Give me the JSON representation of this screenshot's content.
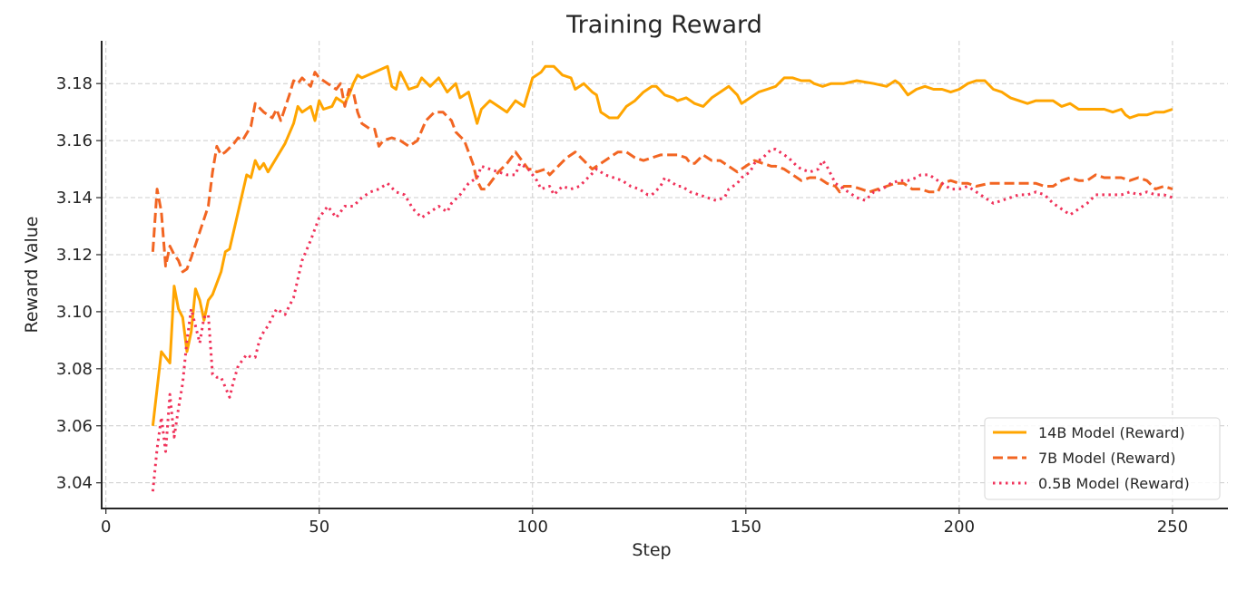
{
  "chart_data": {
    "type": "line",
    "title": "Training Reward",
    "xlabel": "Step",
    "ylabel": "Reward Value",
    "xlim": [
      -1,
      263
    ],
    "ylim": [
      3.031,
      3.195
    ],
    "xticks": [
      0,
      50,
      100,
      150,
      200,
      250
    ],
    "yticks": [
      3.04,
      3.06,
      3.08,
      3.1,
      3.12,
      3.14,
      3.16,
      3.18
    ],
    "ytick_labels": [
      "3.04",
      "3.06",
      "3.08",
      "3.10",
      "3.12",
      "3.14",
      "3.16",
      "3.18"
    ],
    "grid": true,
    "legend_position": "lower right",
    "series": [
      {
        "name": "14B Model (Reward)",
        "color": "#FFA500",
        "style": "solid",
        "x": [
          11,
          13,
          15,
          16,
          17,
          18,
          19,
          20,
          21,
          22,
          23,
          24,
          25,
          27,
          28,
          29,
          31,
          33,
          34,
          35,
          36,
          37,
          38,
          40,
          42,
          44,
          45,
          46,
          48,
          49,
          50,
          51,
          53,
          54,
          56,
          57,
          58,
          59,
          60,
          63,
          66,
          67,
          68,
          69,
          71,
          73,
          74,
          76,
          78,
          80,
          82,
          83,
          85,
          87,
          88,
          90,
          92,
          94,
          96,
          98,
          100,
          102,
          103,
          105,
          107,
          109,
          110,
          112,
          114,
          115,
          116,
          117,
          118,
          120,
          122,
          124,
          126,
          128,
          129,
          131,
          133,
          134,
          136,
          138,
          140,
          142,
          144,
          146,
          148,
          149,
          151,
          153,
          155,
          157,
          159,
          161,
          163,
          165,
          166,
          168,
          170,
          173,
          176,
          180,
          183,
          185,
          186,
          188,
          190,
          192,
          194,
          196,
          198,
          200,
          202,
          204,
          206,
          208,
          210,
          212,
          214,
          216,
          218,
          222,
          224,
          226,
          228,
          231,
          234,
          236,
          238,
          239,
          240,
          242,
          244,
          246,
          248,
          250
        ],
        "values": [
          3.06,
          3.086,
          3.082,
          3.109,
          3.101,
          3.098,
          3.086,
          3.093,
          3.108,
          3.104,
          3.097,
          3.104,
          3.106,
          3.114,
          3.121,
          3.122,
          3.135,
          3.148,
          3.147,
          3.153,
          3.15,
          3.152,
          3.149,
          3.154,
          3.159,
          3.166,
          3.172,
          3.17,
          3.172,
          3.167,
          3.174,
          3.171,
          3.172,
          3.175,
          3.173,
          3.176,
          3.18,
          3.183,
          3.182,
          3.184,
          3.186,
          3.179,
          3.178,
          3.184,
          3.178,
          3.179,
          3.182,
          3.179,
          3.182,
          3.177,
          3.18,
          3.175,
          3.177,
          3.166,
          3.171,
          3.174,
          3.172,
          3.17,
          3.174,
          3.172,
          3.182,
          3.184,
          3.186,
          3.186,
          3.183,
          3.182,
          3.178,
          3.18,
          3.177,
          3.176,
          3.17,
          3.169,
          3.168,
          3.168,
          3.172,
          3.174,
          3.177,
          3.179,
          3.179,
          3.176,
          3.175,
          3.174,
          3.175,
          3.173,
          3.172,
          3.175,
          3.177,
          3.179,
          3.176,
          3.173,
          3.175,
          3.177,
          3.178,
          3.179,
          3.182,
          3.182,
          3.181,
          3.181,
          3.18,
          3.179,
          3.18,
          3.18,
          3.181,
          3.18,
          3.179,
          3.181,
          3.18,
          3.176,
          3.178,
          3.179,
          3.178,
          3.178,
          3.177,
          3.178,
          3.18,
          3.181,
          3.181,
          3.178,
          3.177,
          3.175,
          3.174,
          3.173,
          3.174,
          3.174,
          3.172,
          3.173,
          3.171,
          3.171,
          3.171,
          3.17,
          3.171,
          3.169,
          3.168,
          3.169,
          3.169,
          3.17,
          3.17,
          3.171
        ]
      },
      {
        "name": "7B Model (Reward)",
        "color": "#F26522",
        "style": "dashed",
        "x": [
          11,
          12,
          13,
          14,
          15,
          16,
          17,
          18,
          19,
          20,
          22,
          24,
          25,
          26,
          27,
          28,
          30,
          31,
          32,
          34,
          35,
          37,
          39,
          40,
          41,
          43,
          44,
          45,
          46,
          48,
          49,
          50,
          52,
          54,
          55,
          56,
          57,
          58,
          59,
          60,
          62,
          63,
          64,
          65,
          67,
          69,
          71,
          73,
          75,
          77,
          79,
          81,
          82,
          84,
          85,
          86,
          87,
          88,
          89,
          90,
          92,
          94,
          96,
          97,
          99,
          100,
          101,
          103,
          104,
          106,
          108,
          110,
          112,
          114,
          116,
          118,
          120,
          122,
          124,
          126,
          128,
          130,
          132,
          134,
          136,
          137,
          138,
          140,
          142,
          144,
          146,
          148,
          150,
          152,
          154,
          156,
          157,
          159,
          161,
          163,
          165,
          167,
          169,
          171,
          172,
          173,
          175,
          177,
          179,
          181,
          183,
          185,
          187,
          189,
          191,
          193,
          195,
          196,
          198,
          200,
          202,
          204,
          207,
          210,
          212,
          214,
          216,
          218,
          220,
          222,
          224,
          226,
          228,
          230,
          232,
          234,
          236,
          238,
          240,
          242,
          244,
          246,
          248,
          250
        ],
        "values": [
          3.121,
          3.143,
          3.135,
          3.116,
          3.123,
          3.12,
          3.118,
          3.114,
          3.115,
          3.119,
          3.128,
          3.137,
          3.149,
          3.158,
          3.155,
          3.156,
          3.159,
          3.161,
          3.16,
          3.165,
          3.173,
          3.17,
          3.168,
          3.171,
          3.167,
          3.176,
          3.181,
          3.18,
          3.182,
          3.179,
          3.184,
          3.182,
          3.18,
          3.178,
          3.18,
          3.172,
          3.178,
          3.177,
          3.17,
          3.166,
          3.164,
          3.164,
          3.158,
          3.16,
          3.161,
          3.16,
          3.158,
          3.16,
          3.167,
          3.17,
          3.17,
          3.167,
          3.163,
          3.16,
          3.156,
          3.152,
          3.146,
          3.143,
          3.143,
          3.145,
          3.149,
          3.152,
          3.156,
          3.154,
          3.15,
          3.15,
          3.149,
          3.15,
          3.148,
          3.151,
          3.154,
          3.156,
          3.153,
          3.15,
          3.152,
          3.154,
          3.156,
          3.156,
          3.154,
          3.153,
          3.154,
          3.155,
          3.155,
          3.155,
          3.154,
          3.152,
          3.152,
          3.155,
          3.153,
          3.153,
          3.151,
          3.149,
          3.151,
          3.153,
          3.152,
          3.151,
          3.151,
          3.15,
          3.148,
          3.146,
          3.147,
          3.147,
          3.145,
          3.144,
          3.142,
          3.144,
          3.144,
          3.143,
          3.142,
          3.143,
          3.144,
          3.145,
          3.145,
          3.143,
          3.143,
          3.142,
          3.142,
          3.145,
          3.146,
          3.145,
          3.145,
          3.144,
          3.145,
          3.145,
          3.145,
          3.145,
          3.145,
          3.145,
          3.144,
          3.144,
          3.146,
          3.147,
          3.146,
          3.146,
          3.148,
          3.147,
          3.147,
          3.147,
          3.146,
          3.147,
          3.146,
          3.143,
          3.144,
          3.143
        ]
      },
      {
        "name": "0.5B Model (Reward)",
        "color": "#F0325A",
        "style": "dotted",
        "x": [
          11,
          12,
          13,
          14,
          15,
          16,
          17,
          18,
          19,
          20,
          21,
          22,
          23,
          24,
          25,
          26,
          27,
          29,
          30,
          31,
          33,
          34,
          35,
          36,
          37,
          38,
          39,
          40,
          42,
          44,
          46,
          48,
          50,
          52,
          54,
          56,
          58,
          60,
          62,
          64,
          66,
          68,
          70,
          72,
          74,
          76,
          78,
          80,
          81,
          83,
          85,
          87,
          88,
          90,
          92,
          94,
          96,
          97,
          99,
          101,
          102,
          104,
          105,
          107,
          109,
          111,
          113,
          115,
          117,
          119,
          121,
          123,
          125,
          127,
          128,
          130,
          131,
          133,
          134,
          135,
          137,
          139,
          141,
          143,
          145,
          146,
          148,
          149,
          151,
          152,
          154,
          156,
          157,
          159,
          160,
          162,
          163,
          165,
          167,
          168,
          169,
          170,
          171,
          173,
          175,
          176,
          178,
          180,
          182,
          184,
          186,
          188,
          190,
          191,
          193,
          195,
          196,
          198,
          200,
          202,
          204,
          206,
          208,
          210,
          212,
          214,
          216,
          218,
          220,
          222,
          224,
          226,
          228,
          230,
          232,
          234,
          236,
          238,
          240,
          242,
          244,
          246,
          248,
          250
        ],
        "values": [
          3.037,
          3.052,
          3.063,
          3.051,
          3.071,
          3.056,
          3.066,
          3.075,
          3.09,
          3.101,
          3.095,
          3.089,
          3.098,
          3.099,
          3.078,
          3.077,
          3.077,
          3.07,
          3.076,
          3.081,
          3.085,
          3.084,
          3.084,
          3.09,
          3.093,
          3.095,
          3.098,
          3.101,
          3.099,
          3.105,
          3.118,
          3.125,
          3.133,
          3.137,
          3.133,
          3.137,
          3.137,
          3.14,
          3.142,
          3.143,
          3.145,
          3.142,
          3.141,
          3.136,
          3.133,
          3.135,
          3.137,
          3.135,
          3.138,
          3.141,
          3.145,
          3.147,
          3.151,
          3.15,
          3.149,
          3.148,
          3.148,
          3.152,
          3.15,
          3.146,
          3.143,
          3.144,
          3.141,
          3.144,
          3.143,
          3.144,
          3.147,
          3.15,
          3.148,
          3.147,
          3.146,
          3.144,
          3.143,
          3.141,
          3.141,
          3.144,
          3.147,
          3.145,
          3.144,
          3.144,
          3.142,
          3.141,
          3.14,
          3.139,
          3.14,
          3.143,
          3.145,
          3.147,
          3.149,
          3.152,
          3.154,
          3.157,
          3.157,
          3.155,
          3.154,
          3.151,
          3.15,
          3.149,
          3.15,
          3.153,
          3.151,
          3.148,
          3.145,
          3.143,
          3.141,
          3.14,
          3.139,
          3.142,
          3.143,
          3.145,
          3.146,
          3.146,
          3.147,
          3.148,
          3.148,
          3.146,
          3.145,
          3.143,
          3.143,
          3.144,
          3.142,
          3.14,
          3.138,
          3.139,
          3.14,
          3.141,
          3.141,
          3.142,
          3.141,
          3.138,
          3.136,
          3.134,
          3.136,
          3.138,
          3.141,
          3.141,
          3.141,
          3.141,
          3.142,
          3.141,
          3.142,
          3.141,
          3.141,
          3.14
        ]
      }
    ]
  },
  "legend": {
    "items": [
      {
        "label": "14B Model (Reward)"
      },
      {
        "label": "7B Model (Reward)"
      },
      {
        "label": "0.5B Model (Reward)"
      }
    ]
  }
}
